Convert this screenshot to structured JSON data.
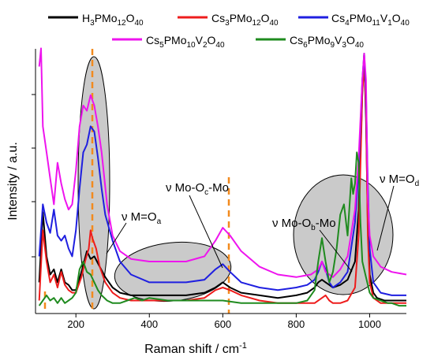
{
  "chart_data": {
    "type": "line",
    "xlabel": "Raman shift / cm",
    "xlabel_sup": "-1",
    "ylabel": "Intensity / a.u.",
    "xlim": [
      90,
      1100
    ],
    "ylim": [
      0,
      1
    ],
    "xticks": [
      200,
      400,
      600,
      800,
      1000
    ],
    "grid": false,
    "legend_position": "top",
    "series": [
      {
        "name": "H3PMo12O40",
        "color": "#000000",
        "x": [
          100,
          110,
          120,
          130,
          140,
          150,
          160,
          170,
          180,
          190,
          200,
          215,
          230,
          240,
          250,
          265,
          280,
          300,
          320,
          350,
          400,
          450,
          500,
          550,
          580,
          600,
          620,
          650,
          700,
          750,
          800,
          830,
          850,
          860,
          870,
          880,
          890,
          900,
          920,
          940,
          960,
          970,
          980,
          985,
          990,
          995,
          1000,
          1010,
          1020,
          1040,
          1060,
          1080,
          1100
        ],
        "y": [
          0.12,
          0.39,
          0.22,
          0.15,
          0.17,
          0.12,
          0.17,
          0.12,
          0.11,
          0.09,
          0.09,
          0.16,
          0.24,
          0.21,
          0.22,
          0.18,
          0.14,
          0.1,
          0.08,
          0.07,
          0.07,
          0.07,
          0.07,
          0.08,
          0.1,
          0.12,
          0.1,
          0.08,
          0.07,
          0.06,
          0.07,
          0.08,
          0.1,
          0.12,
          0.13,
          0.12,
          0.11,
          0.1,
          0.11,
          0.13,
          0.2,
          0.4,
          0.85,
          1.0,
          0.75,
          0.35,
          0.15,
          0.08,
          0.06,
          0.05,
          0.05,
          0.05,
          0.05
        ]
      },
      {
        "name": "Cs3PMo12O40",
        "color": "#ee1c1c",
        "x": [
          100,
          110,
          120,
          130,
          140,
          150,
          160,
          170,
          180,
          190,
          200,
          215,
          225,
          235,
          240,
          245,
          255,
          265,
          280,
          300,
          320,
          350,
          400,
          450,
          500,
          550,
          580,
          600,
          620,
          650,
          700,
          750,
          800,
          850,
          870,
          880,
          890,
          900,
          920,
          940,
          960,
          970,
          980,
          985,
          990,
          995,
          1000,
          1010,
          1030,
          1060,
          1100
        ],
        "y": [
          0.05,
          0.32,
          0.2,
          0.12,
          0.15,
          0.1,
          0.16,
          0.11,
          0.09,
          0.08,
          0.08,
          0.14,
          0.2,
          0.25,
          0.32,
          0.29,
          0.25,
          0.18,
          0.12,
          0.08,
          0.06,
          0.05,
          0.05,
          0.05,
          0.05,
          0.06,
          0.09,
          0.1,
          0.09,
          0.07,
          0.05,
          0.04,
          0.04,
          0.04,
          0.06,
          0.07,
          0.05,
          0.04,
          0.04,
          0.05,
          0.1,
          0.3,
          0.85,
          0.95,
          0.8,
          0.3,
          0.12,
          0.06,
          0.04,
          0.04,
          0.04
        ]
      },
      {
        "name": "Cs4PMo11V1O40",
        "color": "#1f1fe0",
        "x": [
          100,
          110,
          120,
          130,
          140,
          150,
          160,
          170,
          180,
          190,
          200,
          210,
          220,
          230,
          240,
          250,
          260,
          270,
          280,
          300,
          320,
          350,
          400,
          450,
          500,
          550,
          580,
          600,
          620,
          650,
          700,
          750,
          800,
          830,
          850,
          860,
          870,
          880,
          890,
          900,
          920,
          940,
          960,
          970,
          980,
          985,
          990,
          995,
          1000,
          1010,
          1030,
          1060,
          1100
        ],
        "y": [
          0.22,
          0.42,
          0.35,
          0.31,
          0.4,
          0.3,
          0.28,
          0.3,
          0.25,
          0.22,
          0.32,
          0.48,
          0.62,
          0.65,
          0.72,
          0.7,
          0.6,
          0.48,
          0.38,
          0.28,
          0.2,
          0.15,
          0.12,
          0.12,
          0.12,
          0.13,
          0.17,
          0.19,
          0.16,
          0.12,
          0.1,
          0.09,
          0.1,
          0.11,
          0.13,
          0.16,
          0.2,
          0.17,
          0.12,
          0.1,
          0.12,
          0.16,
          0.35,
          0.55,
          0.9,
          1.0,
          0.85,
          0.5,
          0.25,
          0.12,
          0.08,
          0.07,
          0.07
        ]
      },
      {
        "name": "Cs5PMo10V2O40",
        "color": "#ee14ee",
        "x": [
          100,
          105,
          110,
          120,
          130,
          140,
          150,
          160,
          170,
          180,
          190,
          200,
          210,
          220,
          230,
          240,
          250,
          260,
          270,
          285,
          300,
          320,
          350,
          400,
          450,
          500,
          550,
          580,
          600,
          620,
          650,
          700,
          750,
          800,
          840,
          860,
          870,
          880,
          890,
          900,
          920,
          940,
          960,
          970,
          980,
          985,
          990,
          995,
          1000,
          1010,
          1030,
          1060,
          1100
        ],
        "y": [
          0.95,
          1.02,
          0.72,
          0.62,
          0.52,
          0.42,
          0.58,
          0.5,
          0.44,
          0.4,
          0.42,
          0.55,
          0.72,
          0.8,
          0.78,
          0.84,
          0.8,
          0.72,
          0.62,
          0.42,
          0.3,
          0.24,
          0.21,
          0.2,
          0.2,
          0.2,
          0.22,
          0.28,
          0.33,
          0.3,
          0.24,
          0.18,
          0.15,
          0.14,
          0.15,
          0.17,
          0.2,
          0.16,
          0.15,
          0.14,
          0.17,
          0.22,
          0.4,
          0.6,
          0.9,
          1.0,
          0.9,
          0.45,
          0.3,
          0.22,
          0.18,
          0.16,
          0.15
        ]
      },
      {
        "name": "Cs6PMo9V3O40",
        "color": "#1f8b1f",
        "x": [
          100,
          110,
          120,
          130,
          140,
          150,
          160,
          170,
          180,
          190,
          200,
          210,
          220,
          230,
          240,
          250,
          260,
          270,
          285,
          300,
          320,
          340,
          360,
          380,
          400,
          450,
          500,
          550,
          600,
          650,
          700,
          750,
          800,
          830,
          850,
          860,
          870,
          880,
          890,
          900,
          910,
          920,
          930,
          940,
          950,
          955,
          960,
          965,
          970,
          975,
          980,
          990,
          1000,
          1010,
          1030,
          1050,
          1060,
          1080,
          1100
        ],
        "y": [
          0.03,
          0.05,
          0.07,
          0.05,
          0.06,
          0.04,
          0.06,
          0.04,
          0.05,
          0.06,
          0.08,
          0.17,
          0.2,
          0.16,
          0.15,
          0.12,
          0.09,
          0.07,
          0.05,
          0.04,
          0.04,
          0.05,
          0.06,
          0.05,
          0.06,
          0.05,
          0.05,
          0.05,
          0.05,
          0.04,
          0.04,
          0.04,
          0.04,
          0.05,
          0.09,
          0.2,
          0.29,
          0.2,
          0.12,
          0.16,
          0.25,
          0.38,
          0.42,
          0.3,
          0.52,
          0.46,
          0.5,
          0.62,
          0.58,
          0.35,
          0.2,
          0.14,
          0.08,
          0.06,
          0.05,
          0.04,
          0.04,
          0.03,
          0.03
        ]
      }
    ],
    "annotations": [
      {
        "text": "ν M=O",
        "sub": "a"
      },
      {
        "text": "ν Mo-O",
        "sub": "c",
        "suffix": "-Mo"
      },
      {
        "text": "ν Mo-O",
        "sub": "b",
        "suffix": "-Mo"
      },
      {
        "text": "ν M=O",
        "sub": "d"
      }
    ],
    "dashed_lines_x": [
      240,
      605,
      100
    ],
    "highlight_regions": [
      "~240 cm-1 band",
      "300-650 cm-1 region",
      "800-1000 cm-1 region"
    ]
  }
}
